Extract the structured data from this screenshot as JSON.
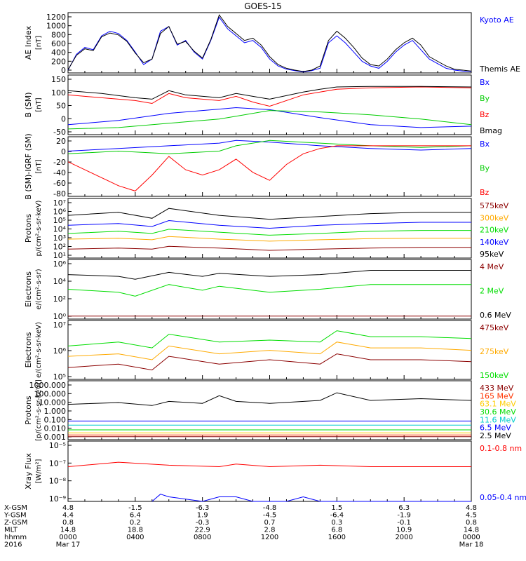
{
  "title": "GOES-15",
  "chart_data": [
    {
      "type": "line",
      "panel": "ae-index",
      "ylabel": "AE Index",
      "yunit": "[nT]",
      "yticks": [
        "1200",
        "1000",
        "800",
        "600",
        "400",
        "200",
        "0"
      ],
      "ylim": [
        0,
        1300
      ],
      "series": [
        {
          "name": "Kyoto AE",
          "color": "#0000ff",
          "x": [
            0,
            0.5,
            1,
            1.5,
            2,
            2.5,
            3,
            3.5,
            4,
            4.5,
            5,
            5.5,
            6,
            6.5,
            7,
            7.5,
            8,
            8.5,
            9,
            9.5,
            10,
            10.5,
            11,
            11.5,
            12,
            12.5,
            13,
            13.5,
            14,
            14.5,
            15,
            15.5,
            16,
            16.5,
            17,
            17.5,
            18,
            18.5,
            19,
            19.5,
            20,
            20.5,
            21,
            21.5,
            22,
            22.5,
            23,
            23.5,
            24
          ],
          "values": [
            60,
            400,
            550,
            500,
            800,
            900,
            850,
            700,
            450,
            180,
            300,
            900,
            1000,
            600,
            700,
            450,
            300,
            700,
            1200,
            950,
            800,
            650,
            700,
            550,
            300,
            150,
            80,
            50,
            20,
            50,
            100,
            650,
            800,
            650,
            450,
            250,
            150,
            100,
            250,
            450,
            600,
            700,
            500,
            300,
            200,
            100,
            60,
            40,
            30
          ]
        },
        {
          "name": "Themis AE",
          "color": "#000000",
          "x": [
            0,
            0.5,
            1,
            1.5,
            2,
            2.5,
            3,
            3.5,
            4,
            4.5,
            5,
            5.5,
            6,
            6.5,
            7,
            7.5,
            8,
            8.5,
            9,
            9.5,
            10,
            10.5,
            11,
            11.5,
            12,
            12.5,
            13,
            13.5,
            14,
            14.5,
            15,
            15.5,
            16,
            16.5,
            17,
            17.5,
            18,
            18.5,
            19,
            19.5,
            20,
            20.5,
            21,
            21.5,
            22,
            22.5,
            23,
            23.5,
            24
          ],
          "values": [
            70,
            380,
            520,
            480,
            780,
            860,
            820,
            680,
            430,
            220,
            300,
            850,
            1000,
            620,
            680,
            470,
            320,
            720,
            1250,
            1000,
            850,
            700,
            750,
            600,
            350,
            180,
            100,
            60,
            30,
            60,
            150,
            700,
            900,
            750,
            550,
            320,
            180,
            150,
            300,
            500,
            650,
            750,
            600,
            350,
            250,
            150,
            80,
            60,
            40
          ]
        }
      ]
    },
    {
      "type": "line",
      "panel": "b-sm",
      "ylabel": "B (SM)",
      "yunit": "[nT]",
      "yticks": [
        "150",
        "100",
        "50",
        "0",
        "-50"
      ],
      "ylim": [
        -60,
        150
      ],
      "series": [
        {
          "name": "Bx",
          "color": "#0000ff",
          "x": [
            0,
            3,
            6,
            9,
            10,
            12,
            15,
            18,
            21,
            24
          ],
          "values": [
            -25,
            -10,
            15,
            30,
            35,
            28,
            0,
            -25,
            -35,
            -30
          ]
        },
        {
          "name": "By",
          "color": "#00cc00",
          "x": [
            0,
            3,
            6,
            9,
            10,
            12,
            15,
            18,
            21,
            24
          ],
          "values": [
            -40,
            -35,
            -20,
            -5,
            5,
            25,
            20,
            10,
            -5,
            -25
          ]
        },
        {
          "name": "Bz",
          "color": "#ff0000",
          "x": [
            0,
            2,
            4,
            5,
            6,
            7,
            9,
            10,
            11,
            12,
            14,
            15,
            16,
            18,
            21,
            24
          ],
          "values": [
            80,
            70,
            60,
            50,
            85,
            70,
            60,
            75,
            55,
            40,
            80,
            90,
            100,
            105,
            108,
            105
          ]
        },
        {
          "name": "Bmag",
          "color": "#000000",
          "x": [
            0,
            2,
            4,
            5,
            6,
            7,
            9,
            10,
            11,
            12,
            14,
            15,
            16,
            18,
            21,
            24
          ],
          "values": [
            95,
            85,
            70,
            65,
            95,
            80,
            70,
            85,
            75,
            65,
            90,
            100,
            108,
            110,
            110,
            108
          ]
        }
      ]
    },
    {
      "type": "line",
      "panel": "b-minus-igrf",
      "ylabel": "B (SM)-IGRF (SM)",
      "yunit": "[nT]",
      "yticks": [
        "20",
        "0",
        "-20",
        "-40",
        "-60",
        "-80"
      ],
      "ylim": [
        -90,
        22
      ],
      "series": [
        {
          "name": "Bx",
          "color": "#0000ff",
          "x": [
            0,
            3,
            6,
            9,
            10,
            12,
            15,
            18,
            21,
            24
          ],
          "values": [
            -5,
            0,
            5,
            10,
            15,
            12,
            5,
            0,
            -3,
            0
          ]
        },
        {
          "name": "By",
          "color": "#00cc00",
          "x": [
            0,
            3,
            6,
            9,
            10,
            12,
            15,
            18,
            21,
            24
          ],
          "values": [
            -10,
            -5,
            -10,
            -5,
            5,
            15,
            10,
            5,
            2,
            5
          ]
        },
        {
          "name": "Bz",
          "color": "#ff0000",
          "x": [
            0,
            1,
            2,
            3,
            4,
            5,
            6,
            7,
            8,
            9,
            10,
            11,
            12,
            13,
            14,
            15,
            16,
            18,
            21,
            24
          ],
          "values": [
            -25,
            -40,
            -55,
            -70,
            -80,
            -50,
            -15,
            -40,
            -50,
            -40,
            -20,
            -45,
            -60,
            -30,
            -10,
            0,
            5,
            5,
            5,
            5
          ]
        }
      ]
    },
    {
      "type": "line",
      "panel": "protons-low",
      "ylabel": "Protons",
      "yunit": "p/(cm²-s-sr-keV)",
      "yticks": [
        "10⁷",
        "10⁶",
        "10⁵",
        "10⁴",
        "10³",
        "10²",
        "10¹"
      ],
      "log_scale": true,
      "ylim": [
        10,
        10000000
      ],
      "series": [
        {
          "name": "575keV",
          "color": "#8b0000",
          "x": [
            0,
            3,
            5,
            6,
            9,
            12,
            15,
            18,
            21,
            24
          ],
          "values": [
            80,
            100,
            80,
            150,
            100,
            60,
            80,
            100,
            120,
            120
          ]
        },
        {
          "name": "300keV",
          "color": "#ffaa00",
          "x": [
            0,
            3,
            5,
            6,
            9,
            12,
            15,
            18,
            21,
            24
          ],
          "values": [
            800,
            1000,
            700,
            1500,
            800,
            500,
            700,
            900,
            1000,
            1000
          ]
        },
        {
          "name": "210keV",
          "color": "#00dd00",
          "x": [
            0,
            3,
            5,
            6,
            9,
            12,
            15,
            18,
            21,
            24
          ],
          "values": [
            3000,
            5000,
            3000,
            8000,
            4000,
            2000,
            3000,
            5000,
            6000,
            6000
          ]
        },
        {
          "name": "140keV",
          "color": "#0000ff",
          "x": [
            0,
            3,
            5,
            6,
            9,
            12,
            15,
            18,
            21,
            24
          ],
          "values": [
            20000,
            30000,
            15000,
            60000,
            20000,
            10000,
            20000,
            30000,
            40000,
            40000
          ]
        },
        {
          "name": "95keV",
          "color": "#000000",
          "x": [
            0,
            3,
            5,
            6,
            9,
            12,
            15,
            18,
            21,
            24
          ],
          "values": [
            200000,
            400000,
            100000,
            1000000,
            200000,
            80000,
            150000,
            300000,
            400000,
            400000
          ]
        }
      ]
    },
    {
      "type": "line",
      "panel": "electrons-high",
      "ylabel": "Electrons",
      "yunit": "e/(cm²-s-sr)",
      "yticks": [
        "10⁶",
        "10⁴",
        "10²",
        "10⁰"
      ],
      "log_scale": true,
      "ylim": [
        1,
        1000000
      ],
      "series": [
        {
          "name": "4 MeV",
          "color": "#8b0000",
          "x": [
            0,
            24
          ],
          "values": [
            2,
            2
          ]
        },
        {
          "name": "2 MeV",
          "color": "#00dd00",
          "x": [
            0,
            3,
            4,
            6,
            8,
            9,
            12,
            15,
            18,
            21,
            24
          ],
          "values": [
            1000,
            500,
            200,
            3000,
            800,
            2000,
            500,
            1000,
            3000,
            3000,
            3000
          ]
        },
        {
          "name": "0.6 MeV",
          "color": "#000000",
          "x": [
            0,
            3,
            4,
            6,
            8,
            9,
            12,
            15,
            18,
            21,
            24
          ],
          "values": [
            30000,
            20000,
            10000,
            50000,
            20000,
            40000,
            20000,
            30000,
            80000,
            80000,
            80000
          ]
        }
      ]
    },
    {
      "type": "line",
      "panel": "electrons-low",
      "ylabel": "Electrons",
      "yunit": "e/(cm²-s-sr-keV)",
      "yticks": [
        "10⁷",
        "10⁶",
        "10⁵"
      ],
      "log_scale": true,
      "ylim": [
        10000,
        10000000
      ],
      "series": [
        {
          "name": "475keV",
          "color": "#8b0000",
          "x": [
            0,
            3,
            5,
            6,
            9,
            12,
            15,
            16,
            18,
            21,
            24
          ],
          "values": [
            40000,
            60000,
            30000,
            150000,
            60000,
            100000,
            60000,
            200000,
            100000,
            100000,
            80000
          ]
        },
        {
          "name": "275keV",
          "color": "#ffaa00",
          "x": [
            0,
            3,
            5,
            6,
            9,
            12,
            15,
            16,
            18,
            21,
            24
          ],
          "values": [
            150000,
            200000,
            100000,
            500000,
            200000,
            300000,
            200000,
            800000,
            400000,
            400000,
            300000
          ]
        },
        {
          "name": "150keV",
          "color": "#00dd00",
          "x": [
            0,
            3,
            5,
            6,
            9,
            12,
            15,
            16,
            18,
            21,
            24
          ],
          "values": [
            500000,
            800000,
            400000,
            2000000,
            800000,
            1000000,
            800000,
            3000000,
            1500000,
            1500000,
            1200000
          ]
        }
      ]
    },
    {
      "type": "line",
      "panel": "protons-high",
      "ylabel": "Protons",
      "yunit": "[p/(cm²-s-sr-keV)]",
      "yticks": [
        "1000.000",
        "100.000",
        "10.000",
        "1.000",
        "0.100",
        "0.010",
        "0.001"
      ],
      "log_scale": true,
      "ylim": [
        0.001,
        1000
      ],
      "series": [
        {
          "name": "433 MeV",
          "color": "#8b0000",
          "x": [
            0,
            24
          ],
          "values": [
            0.002,
            0.002
          ]
        },
        {
          "name": "165 MeV",
          "color": "#ff3300",
          "x": [
            0,
            24
          ],
          "values": [
            0.003,
            0.003
          ]
        },
        {
          "name": "63.1 MeV",
          "color": "#ffcc00",
          "x": [
            0,
            24
          ],
          "values": [
            0.005,
            0.005
          ]
        },
        {
          "name": "30.6 MeV",
          "color": "#00dd00",
          "x": [
            0,
            24
          ],
          "values": [
            0.01,
            0.01
          ]
        },
        {
          "name": "11.6 MeV",
          "color": "#00cccc",
          "x": [
            0,
            24
          ],
          "values": [
            0.03,
            0.03
          ]
        },
        {
          "name": "6.5 MeV",
          "color": "#0000ff",
          "x": [
            0,
            24
          ],
          "values": [
            0.08,
            0.08
          ]
        },
        {
          "name": "2.5 MeV",
          "color": "#000000",
          "x": [
            0,
            3,
            5,
            6,
            8,
            9,
            10,
            12,
            15,
            16,
            18,
            21,
            24
          ],
          "values": [
            4,
            6,
            3,
            8,
            5,
            30,
            8,
            5,
            10,
            60,
            10,
            15,
            10
          ]
        }
      ]
    },
    {
      "type": "line",
      "panel": "xray-flux",
      "ylabel": "Xray Flux",
      "yunit": "[W/m²]",
      "yticks": [
        "10⁻⁵",
        "10⁻⁷",
        "10⁻⁸",
        "10⁻⁹"
      ],
      "log_scale": true,
      "ylim": [
        1e-09,
        1e-05
      ],
      "series": [
        {
          "name": "0.1-0.8 nm",
          "color": "#ff0000",
          "x": [
            0,
            3,
            6,
            9,
            10,
            12,
            15,
            18,
            21,
            24
          ],
          "values": [
            2e-07,
            4e-07,
            2.5e-07,
            2e-07,
            3e-07,
            2e-07,
            2.5e-07,
            2e-07,
            2e-07,
            2e-07
          ]
        },
        {
          "name": "0.05-0.4 nm",
          "color": "#0000ff",
          "x": [
            5,
            5.5,
            6,
            8,
            9,
            10,
            11,
            12,
            13,
            14,
            15,
            16,
            24
          ],
          "values": [
            1e-09,
            3e-09,
            2e-09,
            1e-09,
            2e-09,
            2e-09,
            1e-09,
            1e-09,
            1e-09,
            2e-09,
            1e-09,
            1e-09,
            1e-09
          ]
        }
      ]
    }
  ],
  "footer": {
    "rows": [
      {
        "label": "X-GSM",
        "values": [
          "4.8",
          "-1.5",
          "-6.3",
          "-4.8",
          "1.5",
          "6.3",
          "4.8"
        ]
      },
      {
        "label": "Y-GSM",
        "values": [
          "4.4",
          "6.4",
          "1.9",
          "-4.5",
          "-6.4",
          "-1.9",
          "4.5"
        ]
      },
      {
        "label": "Z-GSM",
        "values": [
          "0.8",
          "0.2",
          "-0.3",
          "0.7",
          "0.3",
          "-0.1",
          "0.8"
        ]
      },
      {
        "label": "MLT",
        "values": [
          "14.8",
          "18.8",
          "22.9",
          "2.8",
          "6.8",
          "10.9",
          "14.8"
        ]
      },
      {
        "label": "hhmm",
        "values": [
          "0000",
          "0400",
          "0800",
          "1200",
          "1600",
          "2000",
          "0000"
        ]
      },
      {
        "label": "2016",
        "values": [
          "Mar 17",
          "",
          "",
          "",
          "",
          "",
          "Mar 18"
        ]
      }
    ]
  }
}
